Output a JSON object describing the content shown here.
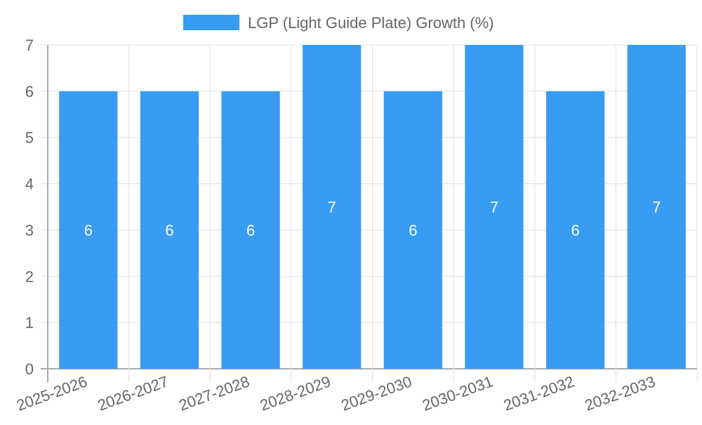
{
  "chart_data": {
    "type": "bar",
    "title": "",
    "xlabel": "",
    "ylabel": "",
    "legend": {
      "label": "LGP (Light Guide Plate) Growth (%)",
      "position": "top"
    },
    "categories": [
      "2025-2026",
      "2026-2027",
      "2027-2028",
      "2028-2029",
      "2029-2030",
      "2030-2031",
      "2031-2032",
      "2032-2033"
    ],
    "series": [
      {
        "name": "LGP (Light Guide Plate) Growth (%)",
        "values": [
          6,
          6,
          6,
          7,
          6,
          7,
          6,
          7
        ]
      }
    ],
    "ylim": [
      0,
      7
    ],
    "yticks": [
      0,
      1,
      2,
      3,
      4,
      5,
      6,
      7
    ],
    "grid": true,
    "data_labels": true,
    "colors": {
      "bar": "#379cf2",
      "grid": "#e0e0e0",
      "axis": "#aaaaaa",
      "text": "#666666",
      "label": "#ffffff"
    }
  }
}
